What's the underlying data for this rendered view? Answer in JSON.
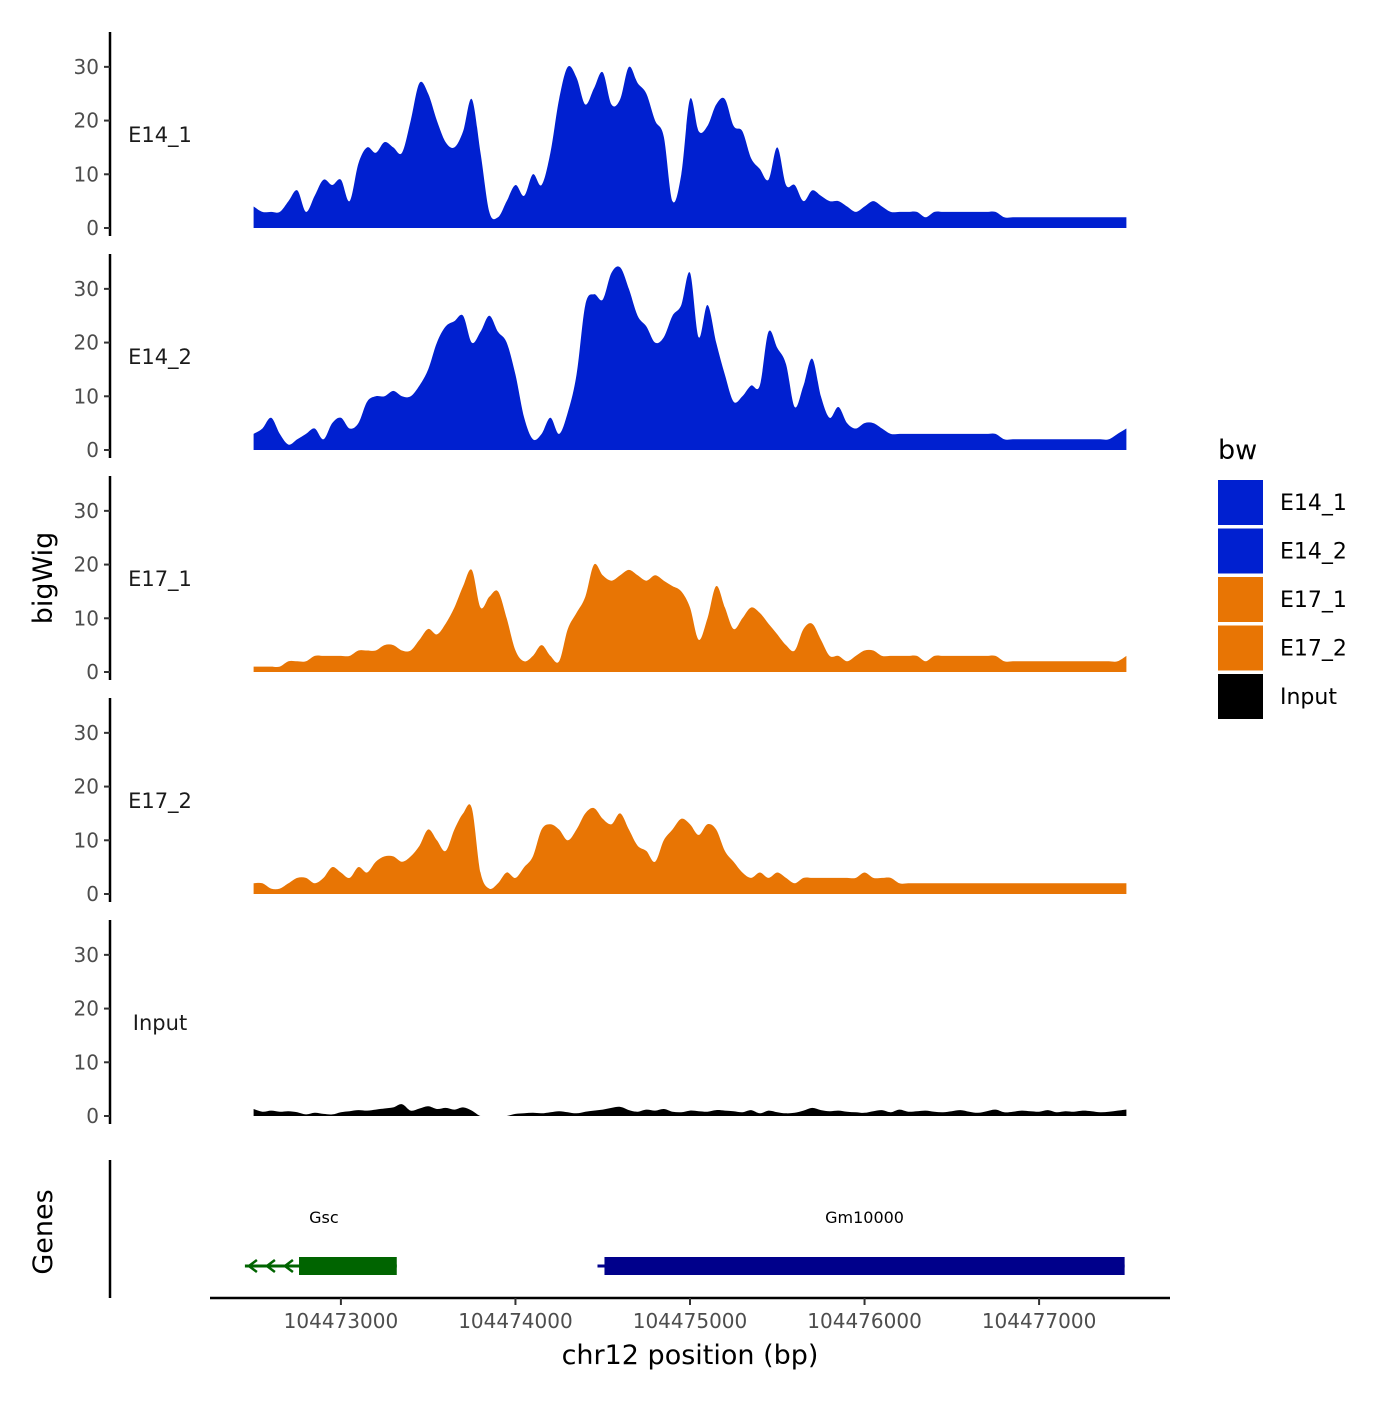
{
  "chart_data": {
    "type": "area",
    "title": "",
    "ylabel": "bigWig",
    "xlabel": "chr12 position (bp)",
    "genes_label": "Genes",
    "ylim": [
      0,
      35
    ],
    "y_ticks": [
      0,
      10,
      20,
      30
    ],
    "xlim": [
      104472250,
      104477750
    ],
    "x_ticks": [
      104473000,
      104474000,
      104475000,
      104476000,
      104477000
    ],
    "x_tick_labels": [
      "104473000",
      "104474000",
      "104475000",
      "104476000",
      "104477000"
    ],
    "legend": {
      "title": "bw",
      "position": "right",
      "entries": [
        {
          "label": "E14_1",
          "color": "#0020d0"
        },
        {
          "label": "E14_2",
          "color": "#0020d0"
        },
        {
          "label": "E17_1",
          "color": "#e87504"
        },
        {
          "label": "E17_2",
          "color": "#e87504"
        },
        {
          "label": "Input",
          "color": "#000000"
        }
      ]
    },
    "series": [
      {
        "name": "E14_1",
        "color": "#0020d0",
        "x": [
          104472500,
          104472550,
          104472600,
          104472650,
          104472700,
          104472750,
          104472800,
          104472850,
          104472900,
          104472950,
          104473000,
          104473050,
          104473100,
          104473150,
          104473200,
          104473250,
          104473300,
          104473350,
          104473400,
          104473450,
          104473500,
          104473550,
          104473600,
          104473650,
          104473700,
          104473750,
          104473800,
          104473850,
          104473900,
          104473950,
          104474000,
          104474050,
          104474100,
          104474150,
          104474200,
          104474250,
          104474300,
          104474350,
          104474400,
          104474450,
          104474500,
          104474550,
          104474600,
          104474650,
          104474700,
          104474750,
          104474800,
          104474850,
          104474900,
          104474950,
          104475000,
          104475050,
          104475100,
          104475150,
          104475200,
          104475250,
          104475300,
          104475350,
          104475400,
          104475450,
          104475500,
          104475550,
          104475600,
          104475650,
          104475700,
          104475750,
          104475800,
          104475850,
          104475900,
          104475950,
          104476000,
          104476050,
          104476100,
          104476150,
          104476200,
          104476250,
          104476300,
          104476350,
          104476400,
          104476450,
          104476500,
          104476550,
          104476600,
          104476650,
          104476700,
          104476750,
          104476800,
          104476850,
          104476900,
          104476950,
          104477000,
          104477050,
          104477100,
          104477150,
          104477200,
          104477250,
          104477300,
          104477350,
          104477400,
          104477450,
          104477500
        ],
        "values": [
          4,
          3,
          3,
          3,
          5,
          7,
          3,
          6,
          9,
          8,
          9,
          5,
          12,
          15,
          14,
          16,
          15,
          14,
          20,
          27,
          25,
          20,
          16,
          15,
          18,
          24,
          14,
          3,
          2,
          5,
          8,
          6,
          10,
          8,
          14,
          24,
          30,
          28,
          23,
          26,
          29,
          23,
          24,
          30,
          27,
          25,
          20,
          17,
          5,
          10,
          24,
          18,
          19,
          23,
          24,
          19,
          18,
          13,
          11,
          9,
          15,
          8,
          8,
          5,
          7,
          6,
          5,
          5,
          4,
          3,
          4,
          5,
          4,
          3,
          3,
          3,
          3,
          2,
          3,
          3,
          3,
          3,
          3,
          3,
          3,
          3,
          2,
          2,
          2,
          2,
          2,
          2,
          2,
          2,
          2,
          2,
          2,
          2,
          2,
          2,
          2
        ]
      },
      {
        "name": "E14_2",
        "color": "#0020d0",
        "x": [
          104472500,
          104472550,
          104472600,
          104472650,
          104472700,
          104472750,
          104472800,
          104472850,
          104472900,
          104472950,
          104473000,
          104473050,
          104473100,
          104473150,
          104473200,
          104473250,
          104473300,
          104473350,
          104473400,
          104473450,
          104473500,
          104473550,
          104473600,
          104473650,
          104473700,
          104473750,
          104473800,
          104473850,
          104473900,
          104473950,
          104474000,
          104474050,
          104474100,
          104474150,
          104474200,
          104474250,
          104474300,
          104474350,
          104474400,
          104474450,
          104474500,
          104474550,
          104474600,
          104474650,
          104474700,
          104474750,
          104474800,
          104474850,
          104474900,
          104474950,
          104475000,
          104475050,
          104475100,
          104475150,
          104475200,
          104475250,
          104475300,
          104475350,
          104475400,
          104475450,
          104475500,
          104475550,
          104475600,
          104475650,
          104475700,
          104475750,
          104475800,
          104475850,
          104475900,
          104475950,
          104476000,
          104476050,
          104476100,
          104476150,
          104476200,
          104476250,
          104476300,
          104476350,
          104476400,
          104476450,
          104476500,
          104476550,
          104476600,
          104476650,
          104476700,
          104476750,
          104476800,
          104476850,
          104476900,
          104476950,
          104477000,
          104477050,
          104477100,
          104477150,
          104477200,
          104477250,
          104477300,
          104477350,
          104477400,
          104477450,
          104477500
        ],
        "values": [
          3,
          4,
          6,
          3,
          1,
          2,
          3,
          4,
          2,
          5,
          6,
          4,
          5,
          9,
          10,
          10,
          11,
          10,
          10,
          12,
          15,
          20,
          23,
          24,
          25,
          20,
          22,
          25,
          22,
          20,
          14,
          6,
          2,
          3,
          6,
          3,
          7,
          14,
          27,
          29,
          28,
          33,
          34,
          30,
          25,
          23,
          20,
          21,
          25,
          27,
          33,
          21,
          27,
          20,
          14,
          9,
          10,
          12,
          12,
          22,
          19,
          16,
          8,
          12,
          17,
          10,
          6,
          8,
          5,
          4,
          5,
          5,
          4,
          3,
          3,
          3,
          3,
          3,
          3,
          3,
          3,
          3,
          3,
          3,
          3,
          3,
          2,
          2,
          2,
          2,
          2,
          2,
          2,
          2,
          2,
          2,
          2,
          2,
          2,
          3,
          4
        ]
      },
      {
        "name": "E17_1",
        "color": "#e87504",
        "x": [
          104472500,
          104472550,
          104472600,
          104472650,
          104472700,
          104472750,
          104472800,
          104472850,
          104472900,
          104472950,
          104473000,
          104473050,
          104473100,
          104473150,
          104473200,
          104473250,
          104473300,
          104473350,
          104473400,
          104473450,
          104473500,
          104473550,
          104473600,
          104473650,
          104473700,
          104473750,
          104473800,
          104473850,
          104473900,
          104473950,
          104474000,
          104474050,
          104474100,
          104474150,
          104474200,
          104474250,
          104474300,
          104474350,
          104474400,
          104474450,
          104474500,
          104474550,
          104474600,
          104474650,
          104474700,
          104474750,
          104474800,
          104474850,
          104474900,
          104474950,
          104475000,
          104475050,
          104475100,
          104475150,
          104475200,
          104475250,
          104475300,
          104475350,
          104475400,
          104475450,
          104475500,
          104475550,
          104475600,
          104475650,
          104475700,
          104475750,
          104475800,
          104475850,
          104475900,
          104475950,
          104476000,
          104476050,
          104476100,
          104476150,
          104476200,
          104476250,
          104476300,
          104476350,
          104476400,
          104476450,
          104476500,
          104476550,
          104476600,
          104476650,
          104476700,
          104476750,
          104476800,
          104476850,
          104476900,
          104476950,
          104477000,
          104477050,
          104477100,
          104477150,
          104477200,
          104477250,
          104477300,
          104477350,
          104477400,
          104477450,
          104477500
        ],
        "values": [
          1,
          1,
          1,
          1,
          2,
          2,
          2,
          3,
          3,
          3,
          3,
          3,
          4,
          4,
          4,
          5,
          5,
          4,
          4,
          6,
          8,
          7,
          9,
          12,
          16,
          19,
          12,
          14,
          15,
          10,
          4,
          2,
          3,
          5,
          3,
          2,
          8,
          11,
          14,
          20,
          18,
          17,
          18,
          19,
          18,
          17,
          18,
          17,
          16,
          15,
          12,
          6,
          10,
          16,
          12,
          8,
          10,
          12,
          11,
          9,
          7,
          5,
          4,
          8,
          9,
          6,
          3,
          3,
          2,
          3,
          4,
          4,
          3,
          3,
          3,
          3,
          3,
          2,
          3,
          3,
          3,
          3,
          3,
          3,
          3,
          3,
          2,
          2,
          2,
          2,
          2,
          2,
          2,
          2,
          2,
          2,
          2,
          2,
          2,
          2,
          3
        ]
      },
      {
        "name": "E17_2",
        "color": "#e87504",
        "x": [
          104472500,
          104472550,
          104472600,
          104472650,
          104472700,
          104472750,
          104472800,
          104472850,
          104472900,
          104472950,
          104473000,
          104473050,
          104473100,
          104473150,
          104473200,
          104473250,
          104473300,
          104473350,
          104473400,
          104473450,
          104473500,
          104473550,
          104473600,
          104473650,
          104473700,
          104473750,
          104473800,
          104473850,
          104473900,
          104473950,
          104474000,
          104474050,
          104474100,
          104474150,
          104474200,
          104474250,
          104474300,
          104474350,
          104474400,
          104474450,
          104474500,
          104474550,
          104474600,
          104474650,
          104474700,
          104474750,
          104474800,
          104474850,
          104474900,
          104474950,
          104475000,
          104475050,
          104475100,
          104475150,
          104475200,
          104475250,
          104475300,
          104475350,
          104475400,
          104475450,
          104475500,
          104475550,
          104475600,
          104475650,
          104475700,
          104475750,
          104475800,
          104475850,
          104475900,
          104475950,
          104476000,
          104476050,
          104476100,
          104476150,
          104476200,
          104476250,
          104476300,
          104476350,
          104476400,
          104476450,
          104476500,
          104476550,
          104476600,
          104476650,
          104476700,
          104476750,
          104476800,
          104476850,
          104476900,
          104476950,
          104477000,
          104477050,
          104477100,
          104477150,
          104477200,
          104477250,
          104477300,
          104477350,
          104477400,
          104477450,
          104477500
        ],
        "values": [
          2,
          2,
          1,
          1,
          2,
          3,
          3,
          2,
          3,
          5,
          4,
          3,
          5,
          4,
          6,
          7,
          7,
          6,
          7,
          9,
          12,
          10,
          8,
          12,
          15,
          16,
          4,
          1,
          2,
          4,
          3,
          5,
          7,
          12,
          13,
          12,
          10,
          12,
          15,
          16,
          14,
          13,
          15,
          12,
          9,
          8,
          6,
          10,
          12,
          14,
          13,
          11,
          13,
          12,
          8,
          6,
          4,
          3,
          4,
          3,
          4,
          3,
          2,
          3,
          3,
          3,
          3,
          3,
          3,
          3,
          4,
          3,
          3,
          3,
          2,
          2,
          2,
          2,
          2,
          2,
          2,
          2,
          2,
          2,
          2,
          2,
          2,
          2,
          2,
          2,
          2,
          2,
          2,
          2,
          2,
          2,
          2,
          2,
          2,
          2,
          2
        ]
      },
      {
        "name": "Input",
        "color": "#000000",
        "x": [
          104472500,
          104472550,
          104472600,
          104472650,
          104472700,
          104472750,
          104472800,
          104472850,
          104472900,
          104472950,
          104473000,
          104473050,
          104473100,
          104473150,
          104473200,
          104473250,
          104473300,
          104473350,
          104473400,
          104473450,
          104473500,
          104473550,
          104473600,
          104473650,
          104473700,
          104473750,
          104473800,
          104473850,
          104473900,
          104473950,
          104474000,
          104474050,
          104474100,
          104474150,
          104474200,
          104474250,
          104474300,
          104474350,
          104474400,
          104474450,
          104474500,
          104474550,
          104474600,
          104474650,
          104474700,
          104474750,
          104474800,
          104474850,
          104474900,
          104474950,
          104475000,
          104475050,
          104475100,
          104475150,
          104475200,
          104475250,
          104475300,
          104475350,
          104475400,
          104475450,
          104475500,
          104475550,
          104475600,
          104475650,
          104475700,
          104475750,
          104475800,
          104475850,
          104475900,
          104475950,
          104476000,
          104476050,
          104476100,
          104476150,
          104476200,
          104476250,
          104476300,
          104476350,
          104476400,
          104476450,
          104476500,
          104476550,
          104476600,
          104476650,
          104476700,
          104476750,
          104476800,
          104476850,
          104476900,
          104476950,
          104477000,
          104477050,
          104477100,
          104477150,
          104477200,
          104477250,
          104477300,
          104477350,
          104477400,
          104477450,
          104477500
        ],
        "values": [
          1.3,
          0.8,
          1.0,
          0.8,
          0.9,
          0.7,
          0.3,
          0.6,
          0.4,
          0.3,
          0.7,
          0.9,
          1.1,
          1.0,
          1.2,
          1.4,
          1.6,
          2.2,
          1.0,
          1.4,
          1.8,
          1.3,
          1.5,
          1.2,
          1.6,
          1.0,
          0,
          0,
          0,
          0,
          0.4,
          0.5,
          0.6,
          0.5,
          0.7,
          0.9,
          0.7,
          0.5,
          0.8,
          1.0,
          1.2,
          1.5,
          1.7,
          1.1,
          0.8,
          1.2,
          1.0,
          1.3,
          0.8,
          0.7,
          1.0,
          0.9,
          0.8,
          1.1,
          1.0,
          0.9,
          0.7,
          1.1,
          0.5,
          1.0,
          0.7,
          0.5,
          0.6,
          1.0,
          1.5,
          1.1,
          0.9,
          1.0,
          0.8,
          0.7,
          0.6,
          0.9,
          1.1,
          0.7,
          1.2,
          0.8,
          0.9,
          1.0,
          0.8,
          0.7,
          0.9,
          1.1,
          0.8,
          0.6,
          0.9,
          1.2,
          0.7,
          0.8,
          1.0,
          0.9,
          0.8,
          1.1,
          0.7,
          0.9,
          0.8,
          1.0,
          0.9,
          0.7,
          0.8,
          1.0,
          1.2
        ]
      }
    ],
    "genes": [
      {
        "name": "Gsc",
        "start": 104472450,
        "end": 104473320,
        "cds_start": 104472760,
        "cds_end": 104473320,
        "strand": "-",
        "color": "#006400"
      },
      {
        "name": "Gm10000",
        "start": 104474470,
        "end": 104477490,
        "cds_start": 104474510,
        "cds_end": 104477490,
        "strand": "-",
        "color": "#00008b"
      }
    ]
  }
}
